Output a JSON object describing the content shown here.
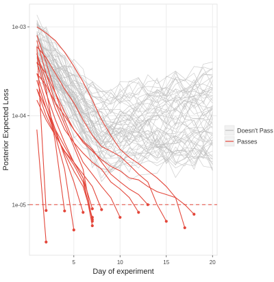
{
  "chart_data": {
    "type": "line",
    "title": "",
    "xlabel": "Day of experiment",
    "ylabel": "Posterior Expected Loss",
    "x_scale": "linear",
    "y_scale": "log10",
    "xlim": [
      0.2,
      20.5
    ],
    "ylim": [
      2.7e-06,
      0.0018
    ],
    "x_ticks": [
      5,
      10,
      15,
      20
    ],
    "x_tick_labels": [
      "5",
      "10",
      "15",
      "20"
    ],
    "y_ticks": [
      1e-05,
      0.0001,
      0.001
    ],
    "y_tick_labels": [
      "1e-05",
      "1e-04",
      "1e-03"
    ],
    "grid": true,
    "legend_position": "right",
    "legend": [
      {
        "name": "Doesn't Pass",
        "color": "#bdbdbd"
      },
      {
        "name": "Passes",
        "color": "#e3463a"
      }
    ],
    "threshold": {
      "y": 1e-05,
      "style": "dashed",
      "color": "#e3463a"
    },
    "series_doesnt_pass": {
      "name": "Doesn't Pass",
      "color": "#bdbdbd",
      "count": 60,
      "x_range": [
        1,
        20
      ],
      "start_range": [
        0.0003,
        0.0013
      ],
      "end_range": [
        3e-05,
        0.00035
      ]
    },
    "series_passes": {
      "name": "Passes",
      "color": "#e3463a",
      "lines": [
        {
          "x": [
            1,
            2,
            3,
            4,
            5,
            6,
            7,
            8,
            9,
            10,
            11,
            12,
            13,
            14,
            15,
            16,
            17
          ],
          "y": [
            0.001,
            0.00085,
            0.0007,
            0.00052,
            0.00036,
            0.00024,
            0.00015,
            9e-05,
            6e-05,
            4.2e-05,
            3.4e-05,
            2.9e-05,
            2.4e-05,
            2e-05,
            1.6e-05,
            1.2e-05,
            5.5e-06
          ]
        },
        {
          "x": [
            1,
            2,
            3,
            4,
            5,
            6,
            7,
            8,
            9,
            10,
            11,
            12,
            13,
            14,
            15
          ],
          "y": [
            0.0006,
            0.00045,
            0.0003,
            0.0002,
            0.00014,
            9e-05,
            6e-05,
            4.5e-05,
            4e-05,
            3.5e-05,
            2.8e-05,
            2.2e-05,
            1.8e-05,
            1e-05,
            6.5e-06
          ]
        },
        {
          "x": [
            1,
            2,
            3,
            4,
            5,
            6,
            7,
            8,
            9,
            10,
            11,
            12,
            13,
            14,
            15,
            16,
            17,
            18
          ],
          "y": [
            0.0004,
            0.0003,
            0.00018,
            0.00011,
            7e-05,
            5e-05,
            4e-05,
            3.2e-05,
            2.7e-05,
            2.4e-05,
            2e-05,
            1.9e-05,
            1.6e-05,
            1.4e-05,
            1.3e-05,
            1.2e-05,
            1e-05,
            7.8e-06
          ]
        },
        {
          "x": [
            1,
            2,
            3,
            4,
            5,
            6,
            7,
            8,
            9,
            10,
            11,
            12
          ],
          "y": [
            0.0008,
            0.0004,
            0.00018,
            9e-05,
            5e-05,
            3.8e-05,
            3e-05,
            2.5e-05,
            1.8e-05,
            1.5e-05,
            1.2e-05,
            8.2e-06
          ]
        },
        {
          "x": [
            1,
            2,
            3,
            4,
            5,
            6,
            7,
            8,
            9,
            10,
            11,
            12,
            13
          ],
          "y": [
            0.0003,
            0.00022,
            0.00014,
            0.0001,
            7e-05,
            5.2e-05,
            4.2e-05,
            3e-05,
            2.2e-05,
            1.8e-05,
            1.5e-05,
            1.3e-05,
            1e-05
          ]
        },
        {
          "x": [
            1,
            2,
            3,
            4,
            5,
            6,
            7,
            8,
            9,
            10
          ],
          "y": [
            0.0005,
            0.00025,
            0.00012,
            7e-05,
            5e-05,
            3e-05,
            2.2e-05,
            1.6e-05,
            1.2e-05,
            7.2e-06
          ]
        },
        {
          "x": [
            1,
            2,
            3,
            4,
            5,
            6,
            7,
            8
          ],
          "y": [
            0.0002,
            0.00012,
            7e-05,
            4.5e-05,
            3e-05,
            2.2e-05,
            1.6e-05,
            8.8e-06
          ]
        },
        {
          "x": [
            1,
            2,
            3,
            4,
            5,
            6,
            7
          ],
          "y": [
            0.0004,
            0.00018,
            9e-05,
            5e-05,
            3e-05,
            2e-05,
            9e-06
          ]
        },
        {
          "x": [
            1,
            2,
            3,
            4,
            5,
            6,
            7
          ],
          "y": [
            0.00015,
            9e-05,
            6e-05,
            4e-05,
            2.8e-05,
            1.8e-05,
            6.8e-06
          ]
        },
        {
          "x": [
            1,
            2,
            3,
            4,
            5,
            6,
            7
          ],
          "y": [
            0.0002,
            0.0001,
            6e-05,
            4e-05,
            3e-05,
            2e-05,
            5.8e-06
          ]
        },
        {
          "x": [
            1,
            2,
            3,
            4,
            5,
            6,
            7
          ],
          "y": [
            0.0007,
            0.0003,
            0.00014,
            8e-05,
            4.5e-05,
            2.5e-05,
            6.5e-06
          ]
        },
        {
          "x": [
            1,
            2,
            3,
            4,
            5,
            6,
            7
          ],
          "y": [
            0.00025,
            0.00012,
            6.5e-05,
            3.8e-05,
            2.4e-05,
            1.6e-05,
            7.2e-06
          ]
        },
        {
          "x": [
            1,
            2,
            3,
            4,
            5,
            6
          ],
          "y": [
            0.0003,
            0.00014,
            7e-05,
            3.5e-05,
            1.8e-05,
            8.2e-06
          ]
        },
        {
          "x": [
            1,
            2,
            3,
            4,
            5
          ],
          "y": [
            0.00025,
            0.00012,
            6e-05,
            2.5e-05,
            5.2e-06
          ]
        },
        {
          "x": [
            1,
            2,
            3,
            4
          ],
          "y": [
            0.0005,
            0.0002,
            5e-05,
            8.5e-06
          ]
        },
        {
          "x": [
            1,
            2
          ],
          "y": [
            0.0006,
            8.6e-06
          ]
        },
        {
          "x": [
            1,
            2
          ],
          "y": [
            7e-05,
            3.8e-06
          ]
        }
      ]
    }
  }
}
